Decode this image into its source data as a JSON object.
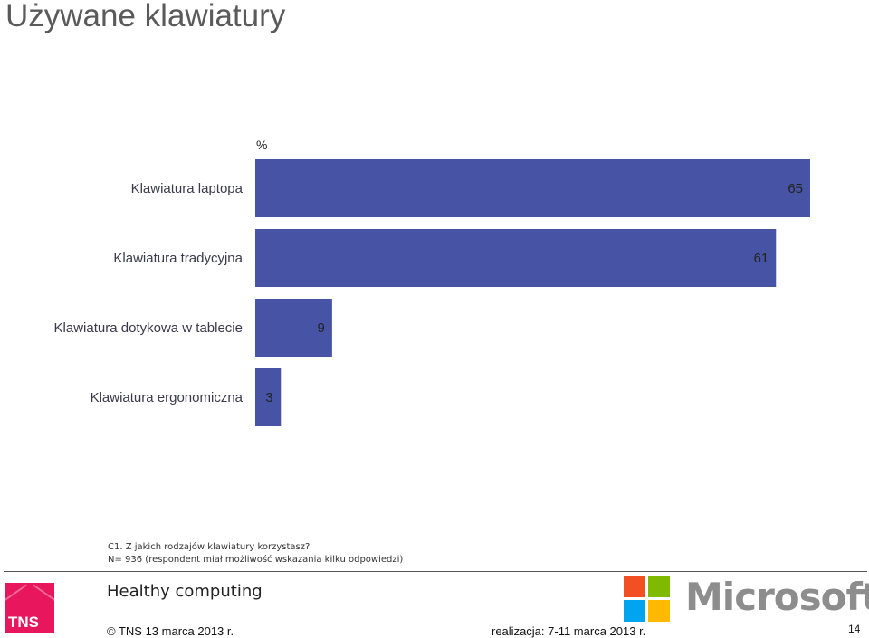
{
  "page": {
    "title": "Używane klawiatury",
    "question": "C1. Z jakich rodzajów klawiatury korzystasz?",
    "sample": "N= 936  (respondent miał możliwość wskazania kilku odpowiedzi)",
    "project": "Healthy computing",
    "copyright": "© TNS  13 marca 2013 r.",
    "fieldwork": "realizacja: 7-11 marca 2013 r.",
    "page_number": "14",
    "tns_logo_text": "TNS",
    "microsoft_logo_text": "Microsoft"
  },
  "colors": {
    "bar": "#4754a5",
    "ms_red": "#f25022",
    "ms_green": "#7fba00",
    "ms_blue": "#00a4ef",
    "ms_yellow": "#ffb900"
  },
  "chart_data": {
    "type": "bar",
    "orientation": "horizontal",
    "unit_label": "%",
    "categories": [
      "Klawiatura laptopa",
      "Klawiatura tradycyjna",
      "Klawiatura dotykowa w tablecie",
      "Klawiatura ergonomiczna"
    ],
    "values": [
      65,
      61,
      9,
      3
    ],
    "xlim": [
      0,
      65
    ],
    "grid": false,
    "legend": "none"
  }
}
